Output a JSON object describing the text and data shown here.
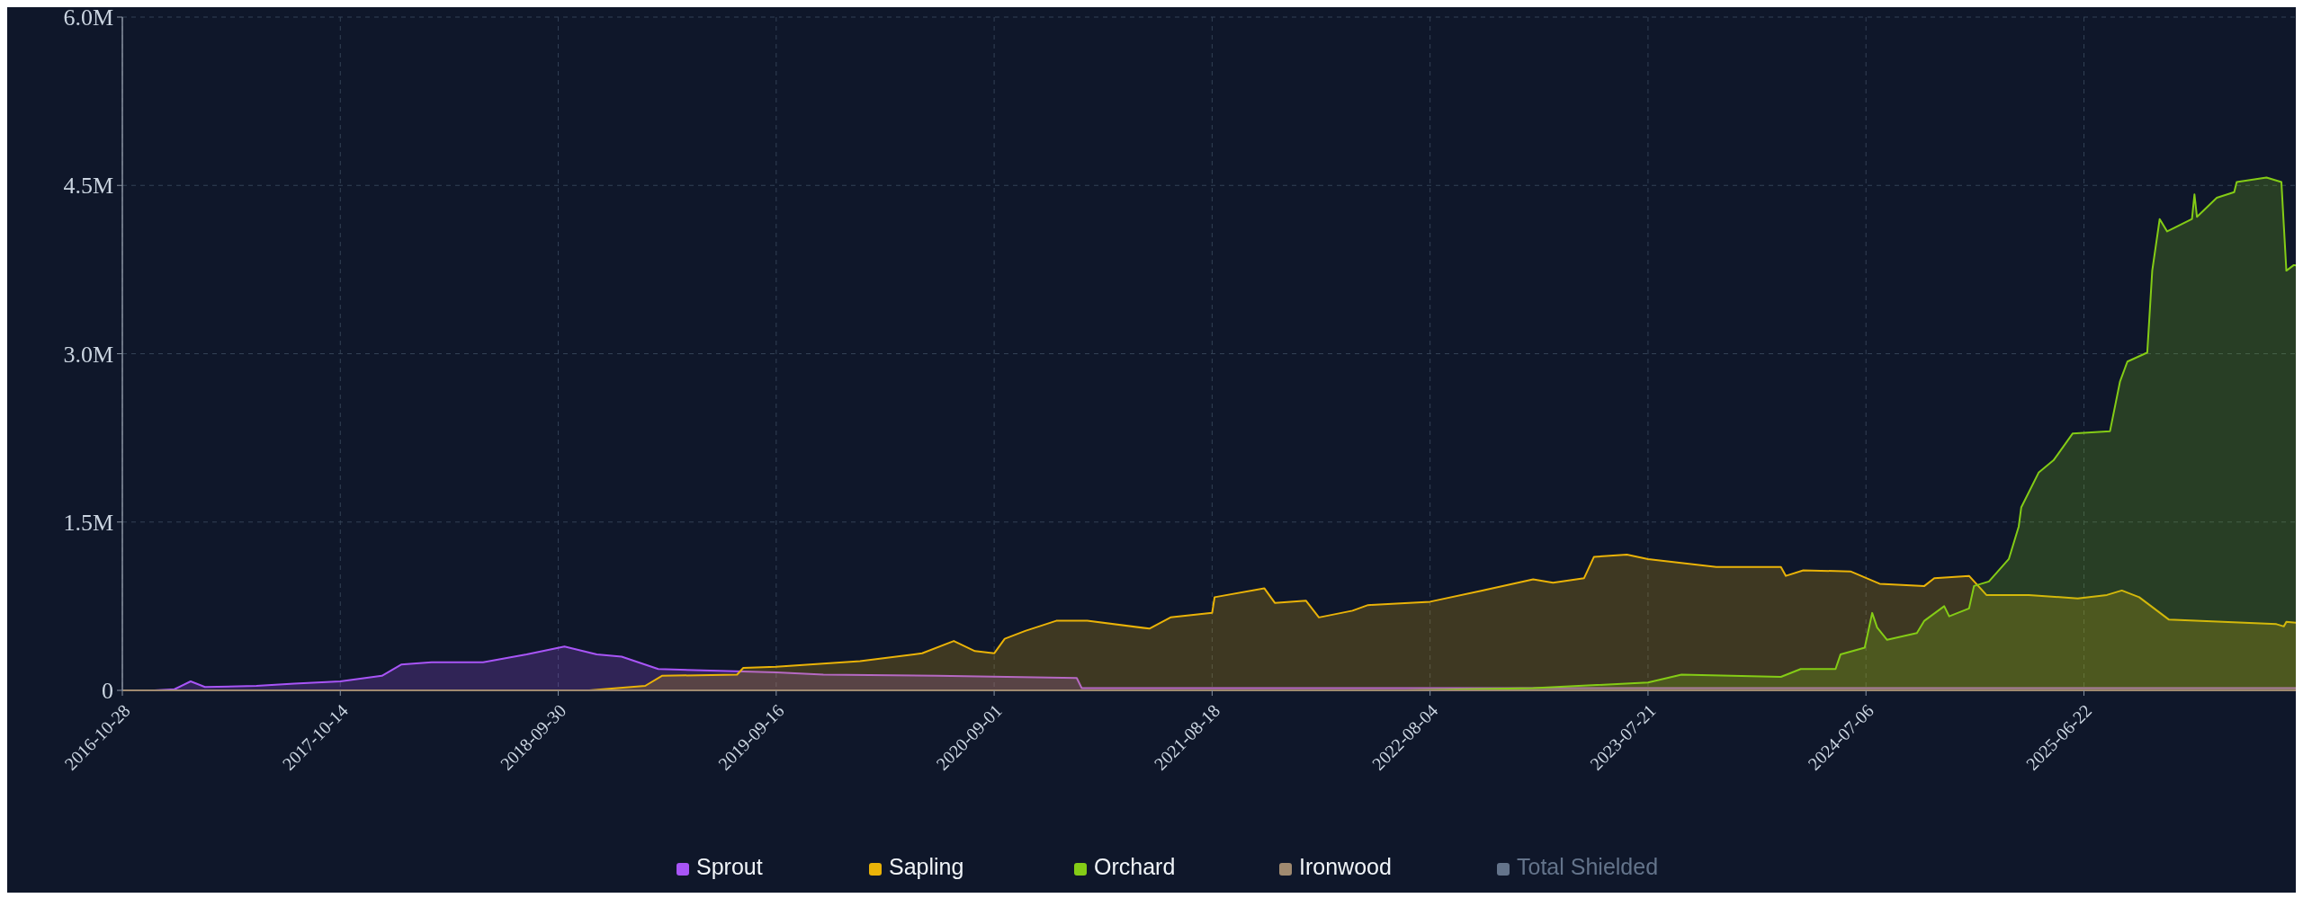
{
  "chart_data": {
    "type": "area",
    "xlim": [
      "2016-10-28",
      "2026-06-04"
    ],
    "xticks": [
      "2016-10-28",
      "2017-10-14",
      "2018-09-30",
      "2019-09-16",
      "2020-09-01",
      "2021-08-18",
      "2022-08-04",
      "2023-07-21",
      "2024-07-06",
      "2025-06-22"
    ],
    "ylim": [
      0,
      6000000
    ],
    "yticks": [
      0,
      {
        "value": 1500000,
        "label": "1.5M"
      },
      {
        "value": 3000000,
        "label": "3.0M"
      },
      {
        "value": 4500000,
        "label": "4.5M"
      },
      {
        "value": 6000000,
        "label": "6.0M"
      }
    ],
    "grid": true,
    "legend": "bottom",
    "series": [
      {
        "name": "Sprout",
        "color": "#a855f7",
        "x": [
          "2016-12-19",
          "2017-01-20",
          "2017-02-15",
          "2017-03-10",
          "2017-06-01",
          "2017-08-01",
          "2017-10-14",
          "2017-12-20",
          "2018-01-20",
          "2018-03-10",
          "2018-06-01",
          "2018-08-10",
          "2018-10-10",
          "2018-12-01",
          "2019-01-10",
          "2019-03-10",
          "2019-09-16",
          "2019-12-01",
          "2020-06-01",
          "2021-01-12",
          "2021-01-20",
          "2022-08-04",
          "2024-07-06",
          "2026-06-04"
        ],
        "values": [
          0,
          10000,
          80000,
          30000,
          40000,
          60000,
          80000,
          130000,
          230000,
          250000,
          250000,
          320000,
          390000,
          320000,
          300000,
          190000,
          160000,
          140000,
          130000,
          110000,
          20000,
          20000,
          20000,
          20000
        ]
      },
      {
        "name": "Sapling",
        "color": "#eab308",
        "x": [
          "2018-11-19",
          "2019-02-17",
          "2019-03-16",
          "2019-07-15",
          "2019-07-25",
          "2019-09-16",
          "2020-01-29",
          "2020-05-08",
          "2020-06-28",
          "2020-08-01",
          "2020-09-01",
          "2020-09-18",
          "2020-10-21",
          "2020-12-10",
          "2021-01-29",
          "2021-05-09",
          "2021-06-12",
          "2021-08-18",
          "2021-08-22",
          "2021-11-10",
          "2021-11-27",
          "2022-01-16",
          "2022-02-06",
          "2022-04-01",
          "2022-04-26",
          "2022-08-04",
          "2022-10-27",
          "2023-01-17",
          "2023-02-18",
          "2023-04-09",
          "2023-04-25",
          "2023-06-17",
          "2023-07-21",
          "2023-11-08",
          "2024-02-20",
          "2024-02-28",
          "2024-03-27",
          "2024-06-11",
          "2024-07-28",
          "2024-10-08",
          "2024-10-24",
          "2024-12-19",
          "2025-01-16",
          "2025-03-25",
          "2025-06-12",
          "2025-07-29",
          "2025-08-22",
          "2025-09-19",
          "2025-11-06",
          "2026-04-28",
          "2026-05-10",
          "2026-05-14",
          "2026-06-04"
        ],
        "values": [
          0,
          40000,
          130000,
          140000,
          200000,
          210000,
          260000,
          330000,
          440000,
          350000,
          330000,
          460000,
          530000,
          620000,
          620000,
          550000,
          650000,
          690000,
          830000,
          910000,
          780000,
          800000,
          650000,
          710000,
          760000,
          790000,
          890000,
          990000,
          960000,
          1000000,
          1190000,
          1210000,
          1170000,
          1100000,
          1100000,
          1020000,
          1070000,
          1060000,
          950000,
          930000,
          1000000,
          1020000,
          850000,
          850000,
          820000,
          850000,
          890000,
          830000,
          630000,
          590000,
          570000,
          610000,
          600000
        ]
      },
      {
        "name": "Orchard",
        "color": "#84cc16",
        "x": [
          "2022-06-25",
          "2023-01-17",
          "2023-07-21",
          "2023-09-13",
          "2024-02-20",
          "2024-03-23",
          "2024-05-18",
          "2024-05-26",
          "2024-07-04",
          "2024-07-16",
          "2024-07-24",
          "2024-08-09",
          "2024-09-26",
          "2024-10-08",
          "2024-11-09",
          "2024-11-17",
          "2024-12-19",
          "2024-12-27",
          "2025-01-20",
          "2025-02-21",
          "2025-03-09",
          "2025-03-13",
          "2025-04-10",
          "2025-05-04",
          "2025-06-04",
          "2025-08-03",
          "2025-08-19",
          "2025-08-31",
          "2025-10-02",
          "2025-10-10",
          "2025-10-22",
          "2025-11-03",
          "2025-12-13",
          "2025-12-17",
          "2025-12-21",
          "2026-01-22",
          "2026-02-19",
          "2026-02-23",
          "2026-04-12",
          "2026-05-06",
          "2026-05-14",
          "2026-05-26",
          "2026-06-04"
        ],
        "values": [
          0,
          20000,
          70000,
          140000,
          120000,
          190000,
          190000,
          320000,
          380000,
          690000,
          560000,
          450000,
          510000,
          620000,
          750000,
          660000,
          730000,
          930000,
          970000,
          1170000,
          1460000,
          1630000,
          1940000,
          2050000,
          2290000,
          2310000,
          2750000,
          2930000,
          3010000,
          3740000,
          4200000,
          4090000,
          4200000,
          4420000,
          4220000,
          4390000,
          4440000,
          4530000,
          4570000,
          4530000,
          3740000,
          3790000,
          3780000
        ]
      },
      {
        "name": "Ironwood",
        "color": "#a08a70",
        "type": "line",
        "x": [
          "2016-10-28",
          "2026-06-04"
        ],
        "values": [
          0,
          0
        ]
      },
      {
        "name": "Total Shielded",
        "color": "#64748b",
        "type": "line"
      }
    ]
  }
}
